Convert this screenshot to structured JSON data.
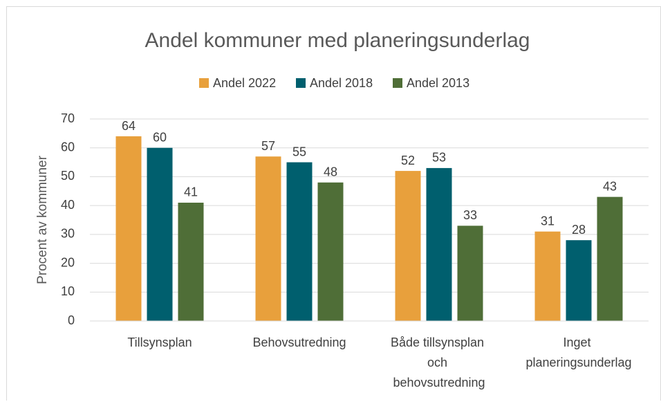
{
  "chart_data": {
    "type": "bar",
    "title": "Andel kommuner med planeringsunderlag",
    "y_label": "Procent av kommuner",
    "categories": [
      "Tillsynsplan",
      "Behovsutredning",
      "Både tillsynsplan och behovsutredning",
      "Inget planeringsunderlag"
    ],
    "series": [
      {
        "name": "Andel 2022",
        "color": "#e8a03c",
        "values": [
          64,
          57,
          52,
          31
        ]
      },
      {
        "name": "Andel 2018",
        "color": "#005f6e",
        "values": [
          60,
          55,
          53,
          28
        ]
      },
      {
        "name": "Andel 2013",
        "color": "#4f6e37",
        "values": [
          41,
          48,
          33,
          43
        ]
      }
    ],
    "ylim": [
      0,
      70
    ],
    "yticks": [
      0,
      10,
      20,
      30,
      40,
      50,
      60,
      70
    ],
    "grid": true,
    "legend": "top"
  }
}
